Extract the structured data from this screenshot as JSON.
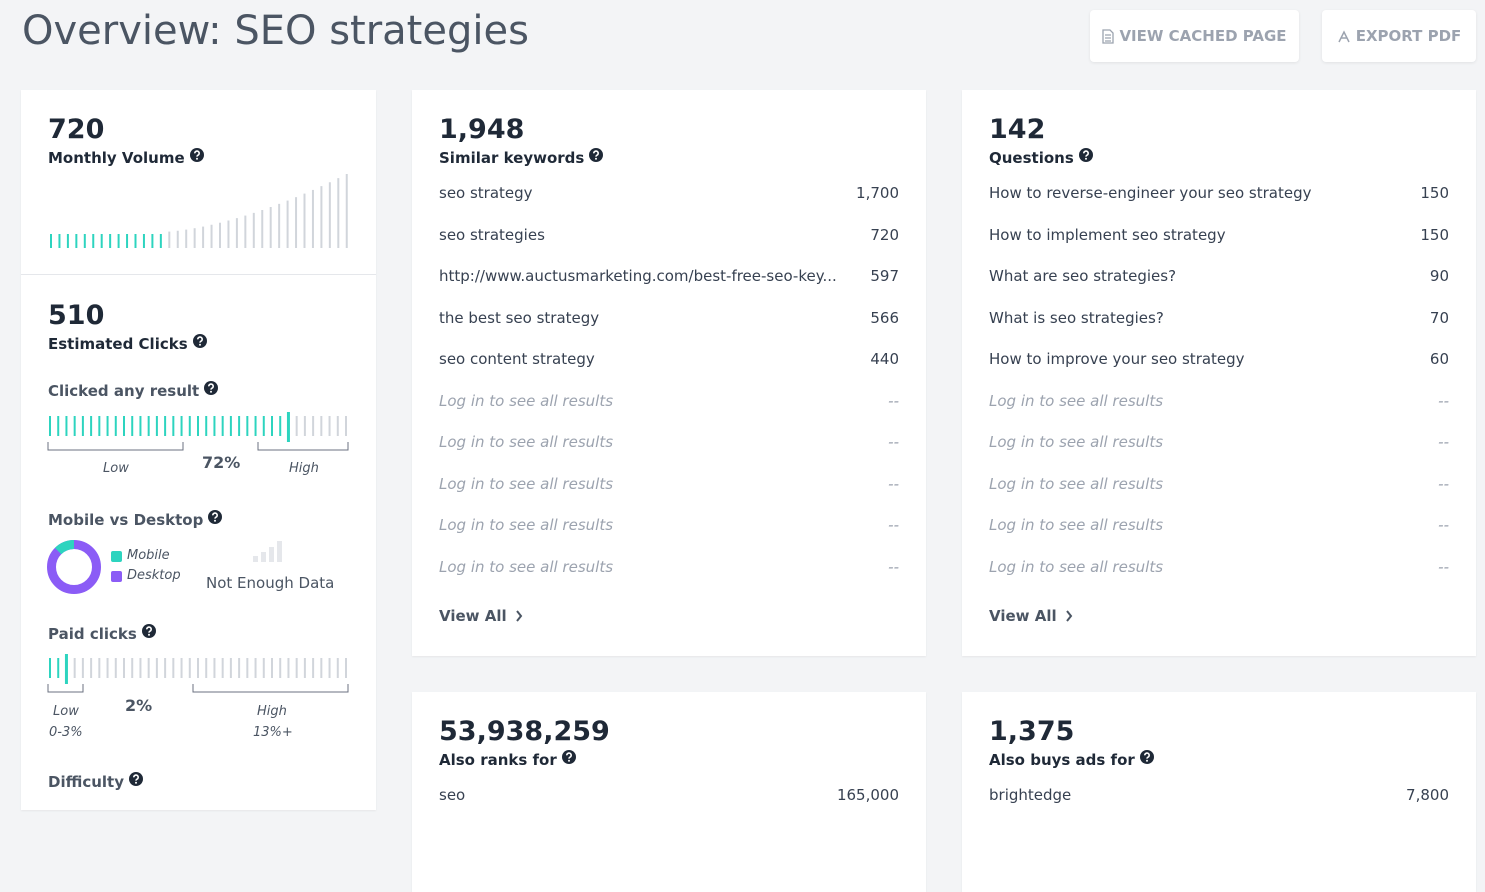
{
  "header": {
    "title": "Overview: SEO strategies",
    "buttons": [
      "VIEW CACHED PAGE",
      "EXPORT PDF"
    ]
  },
  "volume": {
    "value": "720",
    "label": "Monthly Volume"
  },
  "clicks": {
    "value": "510",
    "label": "Estimated Clicks",
    "clicked_any": {
      "label": "Clicked any result",
      "low": "Low",
      "value": "72%",
      "high": "High"
    },
    "device": {
      "label": "Mobile vs Desktop",
      "legend": [
        "Mobile",
        "Desktop"
      ],
      "note": "Not Enough Data"
    },
    "paid": {
      "label": "Paid clicks",
      "low": "Low",
      "low_range": "0-3%",
      "value": "2%",
      "high": "High",
      "high_range": "13%+"
    },
    "difficulty": {
      "label": "Difficulty"
    }
  },
  "cards": [
    {
      "value": "1,948",
      "label": "Similar keywords",
      "rows": [
        [
          "seo strategy",
          "1,700"
        ],
        [
          "seo strategies",
          "720"
        ],
        [
          "http://www.auctusmarketing.com/best-free-seo-key...",
          "597"
        ],
        [
          "the best seo strategy",
          "566"
        ],
        [
          "seo content strategy",
          "440"
        ],
        [
          "Log in to see all results",
          "--"
        ],
        [
          "Log in to see all results",
          "--"
        ],
        [
          "Log in to see all results",
          "--"
        ],
        [
          "Log in to see all results",
          "--"
        ],
        [
          "Log in to see all results",
          "--"
        ]
      ],
      "link": "View All"
    },
    {
      "value": "142",
      "label": "Questions",
      "rows": [
        [
          "How to reverse-engineer your seo strategy",
          "150"
        ],
        [
          "How to implement seo strategy",
          "150"
        ],
        [
          "What are seo strategies?",
          "90"
        ],
        [
          "What is seo strategies?",
          "70"
        ],
        [
          "How to improve your seo strategy",
          "60"
        ],
        [
          "Log in to see all results",
          "--"
        ],
        [
          "Log in to see all results",
          "--"
        ],
        [
          "Log in to see all results",
          "--"
        ],
        [
          "Log in to see all results",
          "--"
        ],
        [
          "Log in to see all results",
          "--"
        ]
      ],
      "link": "View All"
    },
    {
      "value": "53,938,259",
      "label": "Also ranks for",
      "rows": [
        [
          "seo",
          "165,000"
        ]
      ]
    },
    {
      "value": "1,375",
      "label": "Also buys ads for",
      "rows": [
        [
          "brightedge",
          "7,800"
        ]
      ]
    }
  ]
}
